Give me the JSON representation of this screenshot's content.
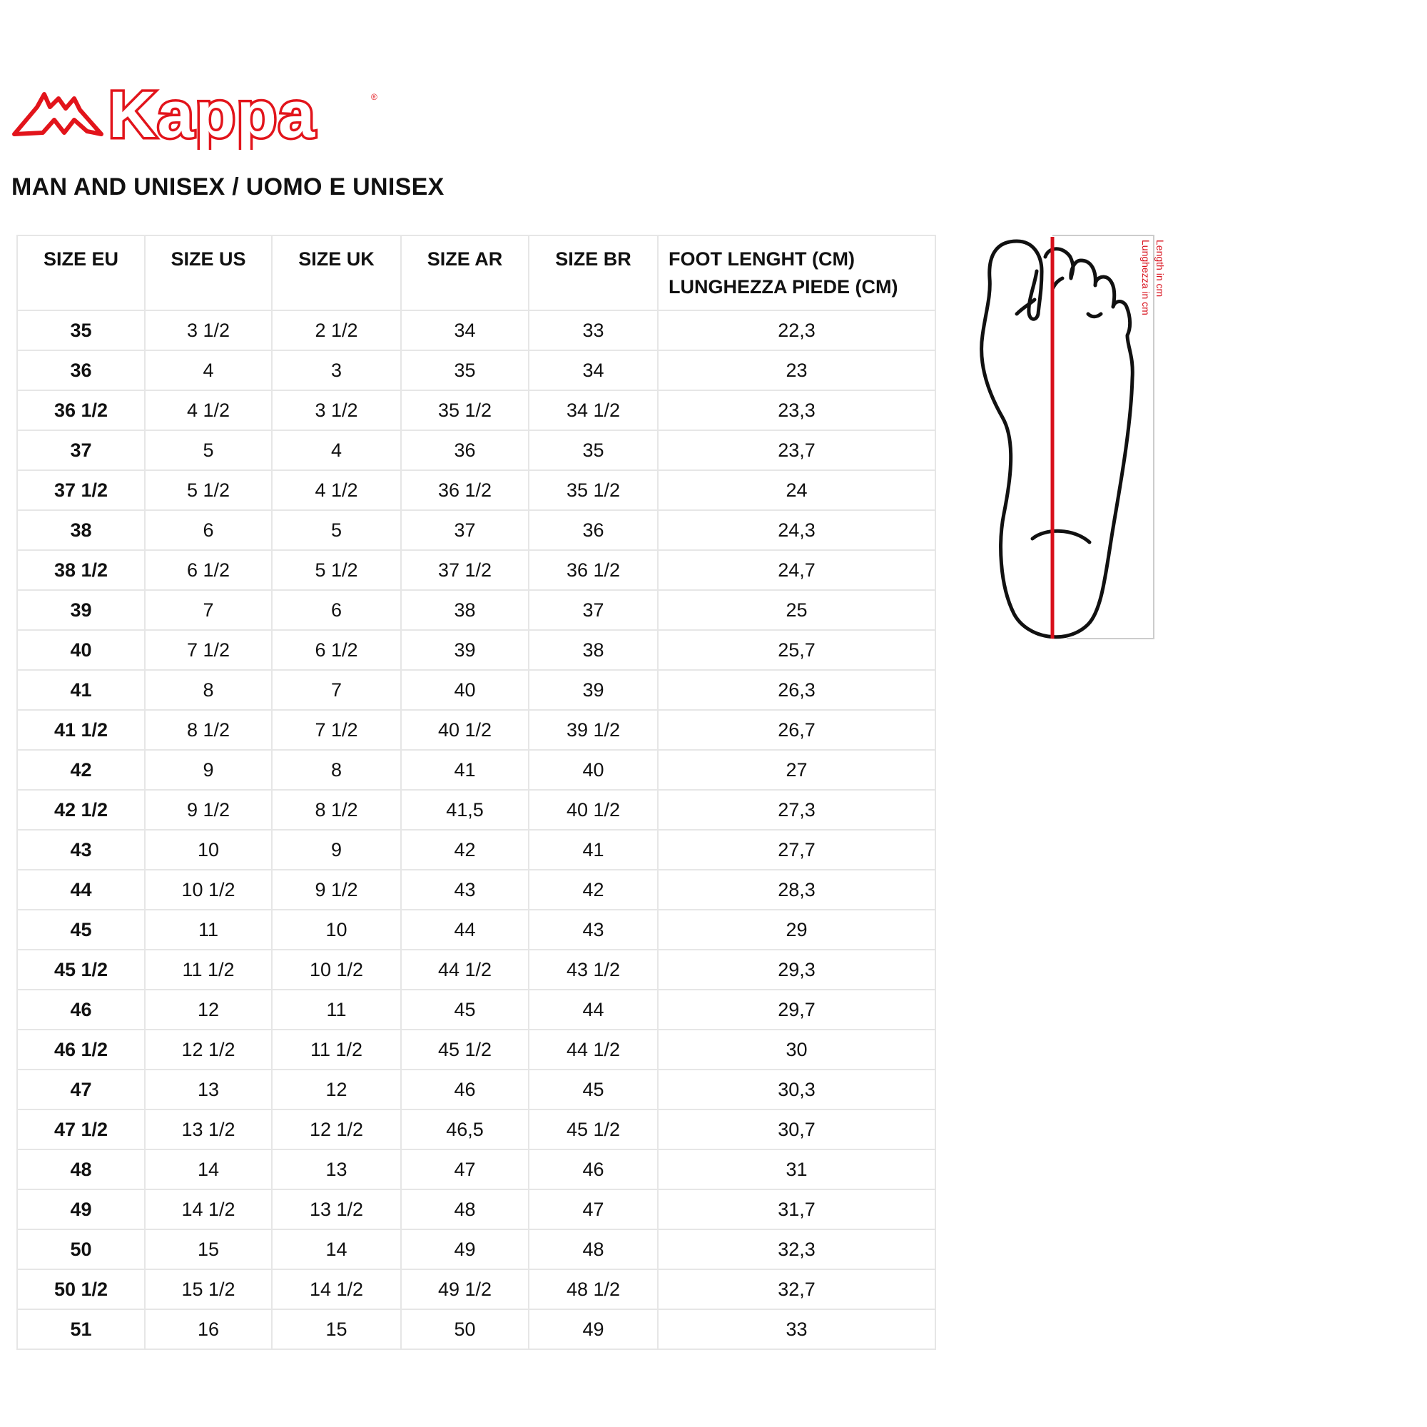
{
  "brand": {
    "logo_text": "Kappa",
    "registered": "®",
    "color": "#e2141b"
  },
  "title": "MAN AND UNISEX / UOMO E UNISEX",
  "table": {
    "headers": [
      "SIZE EU",
      "SIZE US",
      "SIZE UK",
      "SIZE AR",
      "SIZE BR",
      "FOOT LENGHT (CM)",
      "LUNGHEZZA PIEDE (CM)"
    ],
    "rows": [
      [
        "35",
        "3 1/2",
        "2 1/2",
        "34",
        "33",
        "22,3"
      ],
      [
        "36",
        "4",
        "3",
        "35",
        "34",
        "23"
      ],
      [
        "36 1/2",
        "4 1/2",
        "3 1/2",
        "35 1/2",
        "34 1/2",
        "23,3"
      ],
      [
        "37",
        "5",
        "4",
        "36",
        "35",
        "23,7"
      ],
      [
        "37 1/2",
        "5 1/2",
        "4 1/2",
        "36 1/2",
        "35 1/2",
        "24"
      ],
      [
        "38",
        "6",
        "5",
        "37",
        "36",
        "24,3"
      ],
      [
        "38 1/2",
        "6 1/2",
        "5 1/2",
        "37 1/2",
        "36 1/2",
        "24,7"
      ],
      [
        "39",
        "7",
        "6",
        "38",
        "37",
        "25"
      ],
      [
        "40",
        "7 1/2",
        "6 1/2",
        "39",
        "38",
        "25,7"
      ],
      [
        "41",
        "8",
        "7",
        "40",
        "39",
        "26,3"
      ],
      [
        "41 1/2",
        "8 1/2",
        "7 1/2",
        "40 1/2",
        "39 1/2",
        "26,7"
      ],
      [
        "42",
        "9",
        "8",
        "41",
        "40",
        "27"
      ],
      [
        "42 1/2",
        "9 1/2",
        "8 1/2",
        "41,5",
        "40 1/2",
        "27,3"
      ],
      [
        "43",
        "10",
        "9",
        "42",
        "41",
        "27,7"
      ],
      [
        "44",
        "10 1/2",
        "9 1/2",
        "43",
        "42",
        "28,3"
      ],
      [
        "45",
        "11",
        "10",
        "44",
        "43",
        "29"
      ],
      [
        "45 1/2",
        "11 1/2",
        "10 1/2",
        "44 1/2",
        "43 1/2",
        "29,3"
      ],
      [
        "46",
        "12",
        "11",
        "45",
        "44",
        "29,7"
      ],
      [
        "46 1/2",
        "12 1/2",
        "11 1/2",
        "45 1/2",
        "44 1/2",
        "30"
      ],
      [
        "47",
        "13",
        "12",
        "46",
        "45",
        "30,3"
      ],
      [
        "47 1/2",
        "13 1/2",
        "12 1/2",
        "46,5",
        "45 1/2",
        "30,7"
      ],
      [
        "48",
        "14",
        "13",
        "47",
        "46",
        "31"
      ],
      [
        "49",
        "14 1/2",
        "13 1/2",
        "48",
        "47",
        "31,7"
      ],
      [
        "50",
        "15",
        "14",
        "49",
        "48",
        "32,3"
      ],
      [
        "50 1/2",
        "15 1/2",
        "14 1/2",
        "49 1/2",
        "48 1/2",
        "32,7"
      ],
      [
        "51",
        "16",
        "15",
        "50",
        "49",
        "33"
      ]
    ]
  },
  "diagram": {
    "label_en": "Length in cm",
    "label_it": "Lunghezza in cm",
    "line_color": "#d8101c"
  }
}
